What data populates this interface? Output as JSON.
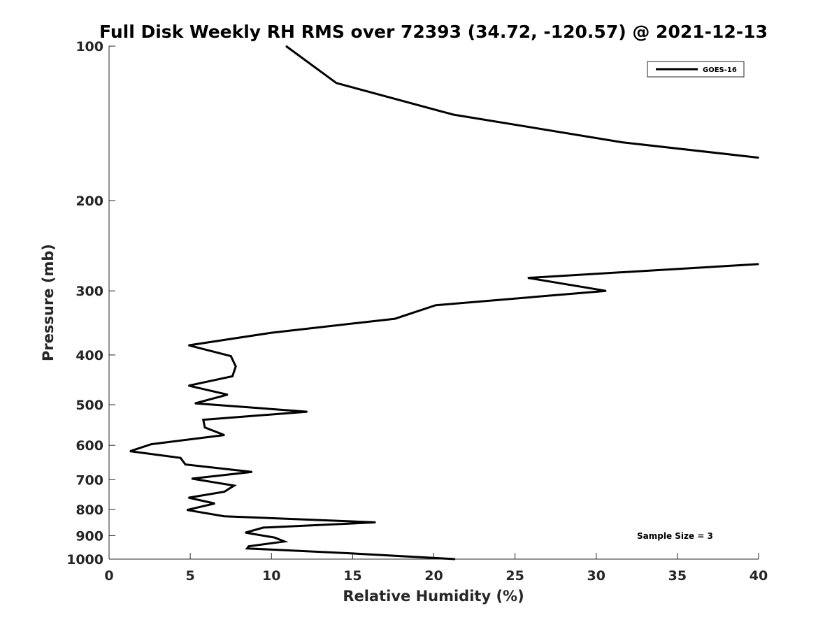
{
  "chart_data": {
    "type": "line",
    "title": "Full Disk Weekly RH RMS over 72393 (34.72, -120.57) @ 2021-12-13",
    "xlabel": "Relative Humidity (%)",
    "ylabel": "Pressure (mb)",
    "xlim": [
      0,
      40
    ],
    "ylim": [
      100,
      1000
    ],
    "yscale": "log",
    "yreverse": true,
    "xticks": [
      0,
      5,
      10,
      15,
      20,
      25,
      30,
      35,
      40
    ],
    "yticks": [
      100,
      200,
      300,
      400,
      500,
      600,
      700,
      800,
      900,
      1000
    ],
    "grid": false,
    "legend_position": "top-right",
    "annotation": "Sample Size = 3",
    "series": [
      {
        "name": "GOES-16",
        "color": "#000000",
        "segments": [
          [
            {
              "x": 10.9,
              "y": 100
            },
            {
              "x": 14.0,
              "y": 118
            },
            {
              "x": 21.2,
              "y": 136
            },
            {
              "x": 31.6,
              "y": 154
            },
            {
              "x": 40.0,
              "y": 165
            }
          ],
          [
            {
              "x": 40.0,
              "y": 266
            },
            {
              "x": 25.8,
              "y": 283
            },
            {
              "x": 30.6,
              "y": 300
            },
            {
              "x": 20.1,
              "y": 320
            },
            {
              "x": 17.6,
              "y": 340
            },
            {
              "x": 10.0,
              "y": 362
            },
            {
              "x": 4.9,
              "y": 383
            },
            {
              "x": 7.5,
              "y": 402
            },
            {
              "x": 7.8,
              "y": 421
            },
            {
              "x": 7.6,
              "y": 440
            },
            {
              "x": 4.9,
              "y": 459
            },
            {
              "x": 7.3,
              "y": 478
            },
            {
              "x": 5.3,
              "y": 497
            },
            {
              "x": 12.2,
              "y": 516
            },
            {
              "x": 5.8,
              "y": 535
            },
            {
              "x": 5.9,
              "y": 554
            },
            {
              "x": 7.1,
              "y": 573
            },
            {
              "x": 2.6,
              "y": 597
            },
            {
              "x": 1.3,
              "y": 616
            },
            {
              "x": 4.4,
              "y": 635
            },
            {
              "x": 4.7,
              "y": 654
            },
            {
              "x": 8.8,
              "y": 676
            },
            {
              "x": 5.1,
              "y": 697
            },
            {
              "x": 7.7,
              "y": 719
            },
            {
              "x": 7.1,
              "y": 739
            },
            {
              "x": 4.9,
              "y": 759
            },
            {
              "x": 6.5,
              "y": 779
            },
            {
              "x": 4.8,
              "y": 802
            },
            {
              "x": 7.1,
              "y": 825
            },
            {
              "x": 16.4,
              "y": 848
            },
            {
              "x": 9.5,
              "y": 868
            },
            {
              "x": 8.4,
              "y": 888
            },
            {
              "x": 10.2,
              "y": 908
            },
            {
              "x": 10.8,
              "y": 924
            },
            {
              "x": 8.6,
              "y": 944
            },
            {
              "x": 8.5,
              "y": 953
            },
            {
              "x": 15.0,
              "y": 975
            },
            {
              "x": 21.3,
              "y": 1000
            }
          ]
        ]
      }
    ]
  }
}
